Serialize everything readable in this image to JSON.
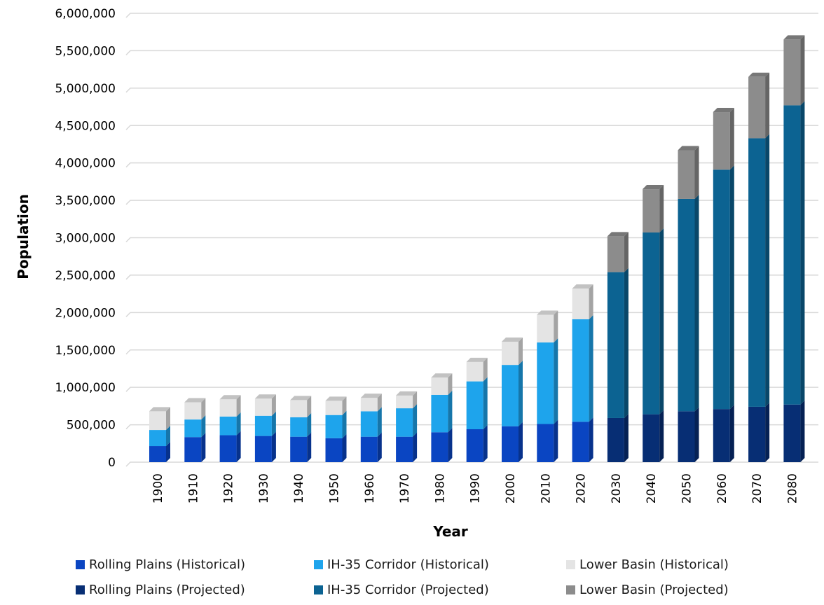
{
  "chart_data": {
    "type": "bar",
    "stacked": true,
    "three_d": true,
    "xlabel": "Year",
    "ylabel": "Population",
    "ylim": [
      0,
      6000000
    ],
    "ytick_step": 500000,
    "y_tick_labels": [
      "0",
      "500,000",
      "1,000,000",
      "1,500,000",
      "2,000,000",
      "2,500,000",
      "3,000,000",
      "3,500,000",
      "4,000,000",
      "4,500,000",
      "5,000,000",
      "5,500,000",
      "6,000,000"
    ],
    "grid": true,
    "legend_position": "bottom",
    "categories": [
      "1900",
      "1910",
      "1920",
      "1930",
      "1940",
      "1950",
      "1960",
      "1970",
      "1980",
      "1990",
      "2000",
      "2010",
      "2020",
      "2030",
      "2040",
      "2050",
      "2060",
      "2070",
      "2080"
    ],
    "series": [
      {
        "name": "Rolling Plains (Historical)",
        "color": "#0a45c2",
        "values": [
          215000,
          335000,
          360000,
          350000,
          340000,
          320000,
          340000,
          340000,
          400000,
          440000,
          480000,
          510000,
          540000,
          null,
          null,
          null,
          null,
          null,
          null
        ]
      },
      {
        "name": "IH-35 Corridor (Historical)",
        "color": "#1ea4ec",
        "values": [
          215000,
          235000,
          250000,
          270000,
          260000,
          310000,
          340000,
          380000,
          500000,
          640000,
          820000,
          1090000,
          1370000,
          null,
          null,
          null,
          null,
          null,
          null
        ]
      },
      {
        "name": "Lower Basin (Historical)",
        "color": "#e4e4e4",
        "values": [
          250000,
          230000,
          230000,
          230000,
          230000,
          190000,
          180000,
          170000,
          230000,
          260000,
          310000,
          370000,
          410000,
          null,
          null,
          null,
          null,
          null,
          null
        ]
      },
      {
        "name": "Rolling Plains (Projected)",
        "color": "#072e74",
        "values": [
          null,
          null,
          null,
          null,
          null,
          null,
          null,
          null,
          null,
          null,
          null,
          null,
          null,
          590000,
          640000,
          680000,
          710000,
          740000,
          770000
        ]
      },
      {
        "name": "IH-35 Corridor (Projected)",
        "color": "#0c6392",
        "values": [
          null,
          null,
          null,
          null,
          null,
          null,
          null,
          null,
          null,
          null,
          null,
          null,
          null,
          1950000,
          2430000,
          2840000,
          3200000,
          3590000,
          4000000
        ]
      },
      {
        "name": "Lower Basin (Projected)",
        "color": "#8c8c8c",
        "values": [
          null,
          null,
          null,
          null,
          null,
          null,
          null,
          null,
          null,
          null,
          null,
          null,
          null,
          480000,
          580000,
          650000,
          770000,
          820000,
          880000
        ]
      }
    ]
  }
}
